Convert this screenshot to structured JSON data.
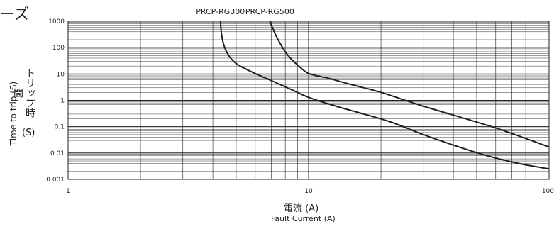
{
  "header_fragment": "ーズ",
  "chart_data": {
    "type": "line",
    "xscale": "log",
    "yscale": "log",
    "xlim": [
      1,
      100
    ],
    "ylim": [
      0.001,
      1000
    ],
    "grid": true,
    "x_tick_labels": [
      "1",
      "10",
      "100"
    ],
    "y_tick_labels": [
      "1000",
      "100",
      "10",
      "1",
      "0.1",
      "0.01",
      "0.001"
    ],
    "xlabel_ja": "電流 (A)",
    "xlabel_en": "Fault Current (A)",
    "ylabel_en": "Time to trip (S)",
    "ylabel_ja": "トリップ時間",
    "ylabel_unit": "(S)",
    "series": [
      {
        "name": "PRCP-RG300",
        "x": [
          4.3,
          4.35,
          4.45,
          4.6,
          4.8,
          5.1,
          5.6,
          6.3,
          7.2,
          8.3,
          10,
          13,
          17,
          22,
          30,
          40,
          55,
          75,
          100
        ],
        "y": [
          1000,
          300,
          120,
          60,
          35,
          22,
          14,
          8.5,
          5,
          2.8,
          1.3,
          0.6,
          0.3,
          0.15,
          0.05,
          0.02,
          0.008,
          0.004,
          0.0025
        ]
      },
      {
        "name": "PRCP-RG500",
        "x": [
          6.9,
          7.3,
          7.8,
          8.3,
          9,
          10,
          12,
          15,
          20,
          30,
          45,
          65,
          100
        ],
        "y": [
          1000,
          300,
          100,
          45,
          22,
          10.5,
          7,
          4,
          2,
          0.6,
          0.2,
          0.07,
          0.017
        ]
      }
    ]
  }
}
